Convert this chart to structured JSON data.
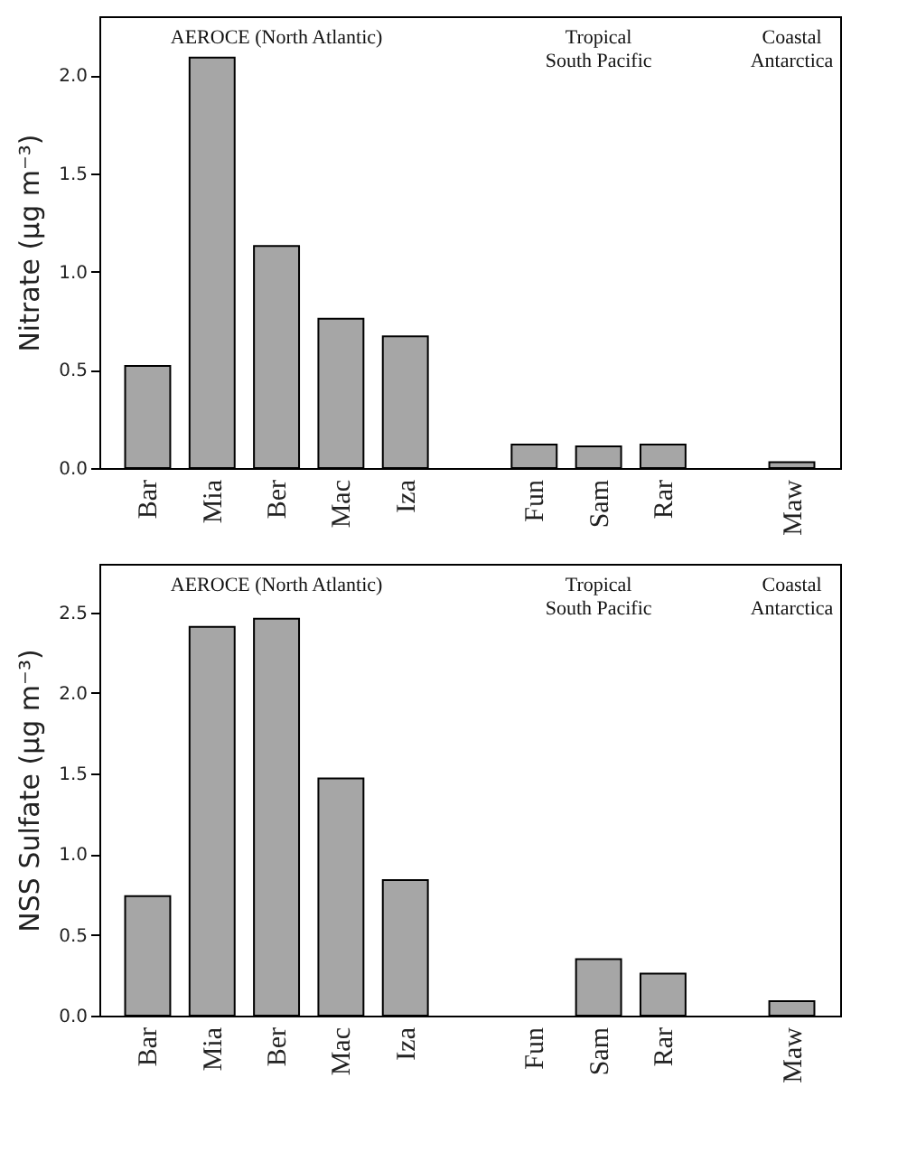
{
  "chart_data": [
    {
      "type": "bar",
      "ylabel": "Nitrate (μg m⁻³)",
      "categories": [
        "Bar",
        "Mia",
        "Ber",
        "Mac",
        "Iza",
        null,
        "Fun",
        "Sam",
        "Rar",
        null,
        "Maw"
      ],
      "values": [
        0.52,
        2.09,
        1.13,
        0.76,
        0.67,
        null,
        0.12,
        0.11,
        0.12,
        null,
        0.03
      ],
      "color": "#a6a6a6",
      "ylim": [
        0,
        2.3
      ],
      "yticks": [
        {
          "value": 0,
          "label": "0.0"
        },
        {
          "value": 0.5,
          "label": "0.5"
        },
        {
          "value": 1,
          "label": "1.0"
        },
        {
          "value": 1.5,
          "label": "1.5"
        },
        {
          "value": 2,
          "label": "2.0"
        }
      ],
      "annotations": [
        "AEROCE (North Atlantic)",
        "Tropical\nSouth Pacific",
        "Coastal\nAntarctica"
      ]
    },
    {
      "type": "bar",
      "ylabel": "NSS Sulfate (μg m⁻³)",
      "categories": [
        "Bar",
        "Mia",
        "Ber",
        "Mac",
        "Iza",
        null,
        "Fun",
        "Sam",
        "Rar",
        null,
        "Maw"
      ],
      "values": [
        0.74,
        2.41,
        2.46,
        1.47,
        0.84,
        null,
        null,
        0.35,
        0.26,
        null,
        0.09
      ],
      "color": "#a6a6a6",
      "ylim": [
        0,
        2.8
      ],
      "yticks": [
        {
          "value": 0,
          "label": "0.0"
        },
        {
          "value": 0.5,
          "label": "0.5"
        },
        {
          "value": 1,
          "label": "1.0"
        },
        {
          "value": 1.5,
          "label": "1.5"
        },
        {
          "value": 2,
          "label": "2.0"
        },
        {
          "value": 2.5,
          "label": "2.5"
        }
      ],
      "annotations": [
        "AEROCE (North Atlantic)",
        "Tropical\nSouth Pacific",
        "Coastal\nAntarctica"
      ]
    }
  ]
}
